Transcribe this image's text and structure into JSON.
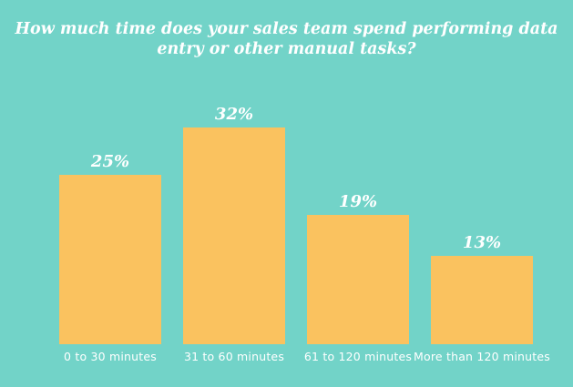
{
  "chart_data": {
    "type": "bar",
    "title": "How much time does your sales team spend performing data entry or other manual tasks?",
    "title_line1": "How much time does your sales team spend performing data",
    "title_line2": "entry or other manual tasks?",
    "categories": [
      "0 to 30 minutes",
      "31 to 60 minutes",
      "61 to 120 minutes",
      "More than 120 minutes"
    ],
    "values": [
      25,
      32,
      19,
      13
    ],
    "value_labels": [
      "25%",
      "32%",
      "19%",
      "13%"
    ],
    "ylabel": "",
    "xlabel": "",
    "ylim": [
      0,
      35
    ],
    "grid": false,
    "legend": false,
    "colors": {
      "background": "#72D3C8",
      "bar": "#FAC25F",
      "text": "#FFFFFF"
    }
  }
}
